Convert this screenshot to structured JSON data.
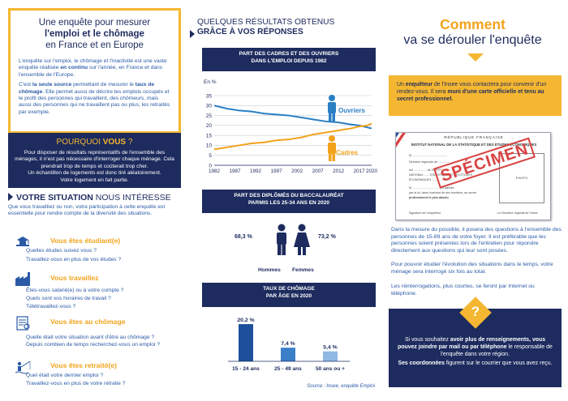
{
  "intro": {
    "title1": "Une enquête pour mesurer",
    "title2": "l'emploi et le chômage",
    "title3": "en France et en Europe",
    "p1_pre": "L'enquête sur l'emploi, le chômage et l'inactivité est une vaste enquête réalisée ",
    "p1_bold": "en continu",
    "p1_post": " sur l'année, en France et dans l'ensemble de l'Europe.",
    "p2_pre": "C'est ",
    "p2_bold1": "la seule source",
    "p2_mid": " permettant de mesurer le ",
    "p2_bold2": "taux de chômage",
    "p2_post": ". Elle permet aussi de décrire les emplois occupés et le profil des personnes qui travaillent, des chômeurs, mais aussi des personnes qui ne travaillent pas ou plus, les retraités par exemple."
  },
  "why": {
    "title_pre": "POURQUOI ",
    "title_bold": "VOUS",
    "title_post": " ?",
    "text1": "Pour disposer de résultats représentatifs de l'ensemble des ménages, il n'est pas nécessaire d'interroger chaque ménage. Cela prendrait trop de temps et coûterait trop cher.",
    "text2": "Un échantillon de logements est donc tiré aléatoirement.",
    "text3": "Votre logement en fait partie."
  },
  "situation": {
    "title_bold": "VOTRE SITUATION",
    "title_rest": " NOUS INTÉRESSE",
    "intro": "Que vous travailliez ou non, votre participation à cette enquête est essentielle pour rendre compte de la diversité des situations.",
    "items": [
      {
        "icon": "student-icon",
        "head": "Vous êtes étudiant(e)",
        "q": [
          "Quelles études suivez vous ?",
          "Travaillez-vous en plus de vos études ?"
        ]
      },
      {
        "icon": "factory-icon",
        "head": "Vous travaillez",
        "q": [
          "Êtes-vous salarié(e) ou à votre compte ?",
          "Quels sont vos horaires de travail ?",
          "Télétravaillez-vous ?"
        ]
      },
      {
        "icon": "newspaper-icon",
        "head": "Vous êtes au chômage",
        "q": [
          "Quelle était votre situation avant d'être au chômage ?",
          "Depuis combien de temps recherchez-vous un emploi ?"
        ]
      },
      {
        "icon": "fishing-icon",
        "head": "Vous êtes retraité(e)",
        "q": [
          "Quel était votre dernier emploi ?",
          "Travaillez-vous en plus de votre retraite ?"
        ]
      }
    ]
  },
  "results": {
    "title1": "QUELQUES RÉSULTATS OBTENUS",
    "title2": "GRÂCE À VOS RÉPONSES",
    "chart1_head1": "PART DES CADRES ET DES OUVRIERS",
    "chart1_head2": "DANS L'EMPLOI DEPUIS 1982",
    "chart2_head1": "PART DES DIPLÔMÉS DU BACCALAURÉAT",
    "chart2_head2": "PARMIS LES 25-34 ANS EN 2020",
    "chart3_head1": "TAUX DE CHÔMAGE",
    "chart3_head2": "PAR ÂGE EN 2020",
    "source": "Source : Insee, enquête Emploi"
  },
  "chart_data": [
    {
      "type": "line",
      "ylabel": "En %",
      "ylim": [
        0,
        35
      ],
      "yticks": [
        "0",
        "5",
        "10",
        "15",
        "20",
        "25",
        "30",
        "35"
      ],
      "xticks": [
        "1982",
        "1987",
        "1992",
        "1997",
        "2002",
        "2007",
        "2012",
        "2017",
        "2020"
      ],
      "x": [
        1982,
        1985,
        1988,
        1991,
        1994,
        1997,
        2000,
        2003,
        2006,
        2009,
        2012,
        2015,
        2017,
        2019,
        2020
      ],
      "grid": true,
      "series": [
        {
          "name": "Ouvriers",
          "color": "#2a7fc4",
          "values": [
            30,
            28.5,
            27.5,
            27,
            26,
            25.5,
            25,
            24,
            23,
            22,
            21.5,
            20.5,
            20,
            19,
            18.5
          ]
        },
        {
          "name": "Cadres",
          "color": "#f2a31b",
          "values": [
            8,
            9,
            10,
            11,
            11.5,
            12.5,
            13,
            14,
            15.5,
            16.5,
            17.5,
            18.5,
            19.5,
            20,
            21
          ]
        }
      ]
    },
    {
      "type": "bar",
      "categories": [
        "Hommes",
        "Femmes"
      ],
      "values": [
        68.3,
        73.2
      ],
      "labels": [
        "68,3 %",
        "73,2 %"
      ]
    },
    {
      "type": "bar",
      "categories": [
        "15 - 24 ans",
        "25 - 49 ans",
        "50 ans ou +"
      ],
      "values": [
        20.2,
        7.4,
        5.4
      ],
      "labels": [
        "20,2 %",
        "7,4 %",
        "5,4 %"
      ],
      "colors": [
        "#1d4f9a",
        "#3a7fc8",
        "#8fb8e4"
      ],
      "ylim": [
        0,
        22
      ]
    }
  ],
  "how": {
    "title1": "Comment",
    "title2": "va se dérouler l'enquête",
    "enq_pre": "Un ",
    "enq_b1": "enquêteur",
    "enq_mid": " de l'Insee vous contactera pour convenir d'un rendez-vous. Il sera ",
    "enq_b2": "muni d'une carte officielle et tenu au secret professionnel.",
    "p1": "Dans la mesure du possible, il posera des questions à l'ensemble des personnes de 15-89 ans de votre foyer. Il est préférable que les personnes soient présentes lors de l'entretien pour répondre directement aux questions qui leur sont posées.",
    "p2": "Pour pouvoir étudier l'évolution des situations dans le temps, votre ménage sera interrogé six fois au total.",
    "p3": "Les réinterrogations, plus courtes, se feront par Internet ou téléphone."
  },
  "card": {
    "rf": "RÉPUBLIQUE FRANÇAISE",
    "insee": "INSTITUT NATIONAL DE LA STATISTIQUE ET DES ÉTUDES ÉCONOMIQUES",
    "l1": "M ...........................................",
    "l2": "Direction régionale de ..............",
    "l3": "est ................ de l'INSTITUT",
    "l4": "NATIONAL ...... STATISTIQUE ET DES ÉTUDES",
    "l5": "ÉCONOMIQUES .............................",
    "l6": "M ................................. est astreint",
    "l7": "par la loi, dans l'exercice de ses fonctions, au secret",
    "l8": "professionnel le plus absolu.",
    "photo": "PHOTO",
    "sig1": "Signature de l'enquêteur",
    "sig2": "Le Directeur régional de l'Insee",
    "stamp": "SPÉCIMEN"
  },
  "contact": {
    "mark": "?",
    "t1_pre": "Si vous souhaitez ",
    "t1_b": "avoir plus de renseignements, vous pouvez joindre par mail ou par téléphone",
    "t1_post": " le responsable de l'enquête dans votre région.",
    "t2_b": "Ses coordonnées",
    "t2_post": " figurent sur le courrier que vous avez reçu."
  }
}
